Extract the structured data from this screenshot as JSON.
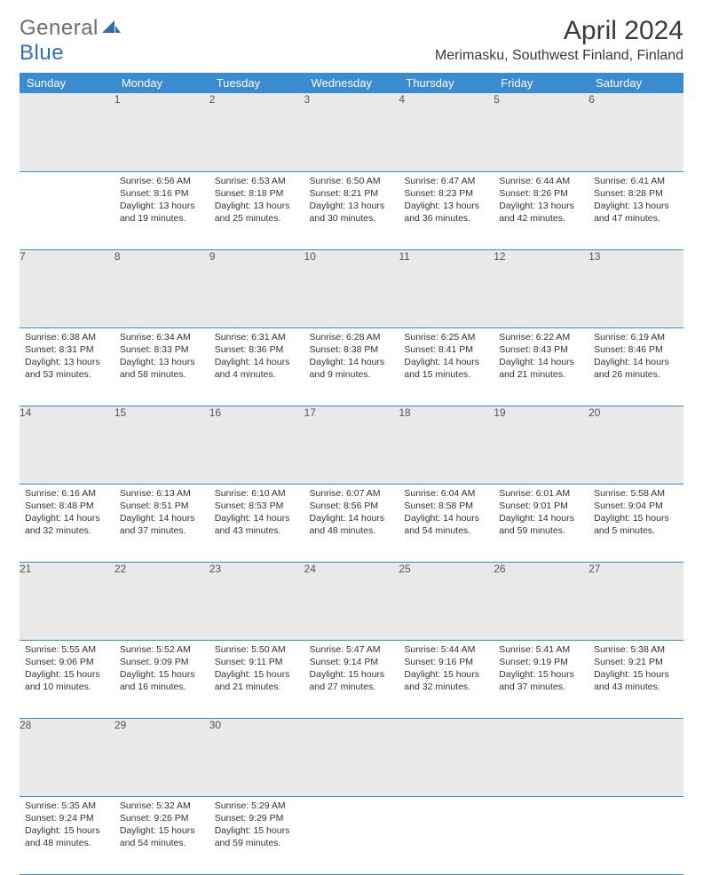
{
  "logo": {
    "text1": "General",
    "text2": "Blue"
  },
  "title": "April 2024",
  "location": "Merimasku, Southwest Finland, Finland",
  "headers": [
    "Sunday",
    "Monday",
    "Tuesday",
    "Wednesday",
    "Thursday",
    "Friday",
    "Saturday"
  ],
  "colors": {
    "header_bg": "#3a8bd0",
    "header_fg": "#ffffff",
    "daynum_bg": "#e9e9e9",
    "row_divider": "#3a8bd0",
    "logo_gray": "#6d6e71",
    "logo_blue": "#2f6fb4"
  },
  "weeks": [
    {
      "nums": [
        "",
        "1",
        "2",
        "3",
        "4",
        "5",
        "6"
      ],
      "cells": [
        null,
        {
          "sunrise": "Sunrise: 6:56 AM",
          "sunset": "Sunset: 8:16 PM",
          "day1": "Daylight: 13 hours",
          "day2": "and 19 minutes."
        },
        {
          "sunrise": "Sunrise: 6:53 AM",
          "sunset": "Sunset: 8:18 PM",
          "day1": "Daylight: 13 hours",
          "day2": "and 25 minutes."
        },
        {
          "sunrise": "Sunrise: 6:50 AM",
          "sunset": "Sunset: 8:21 PM",
          "day1": "Daylight: 13 hours",
          "day2": "and 30 minutes."
        },
        {
          "sunrise": "Sunrise: 6:47 AM",
          "sunset": "Sunset: 8:23 PM",
          "day1": "Daylight: 13 hours",
          "day2": "and 36 minutes."
        },
        {
          "sunrise": "Sunrise: 6:44 AM",
          "sunset": "Sunset: 8:26 PM",
          "day1": "Daylight: 13 hours",
          "day2": "and 42 minutes."
        },
        {
          "sunrise": "Sunrise: 6:41 AM",
          "sunset": "Sunset: 8:28 PM",
          "day1": "Daylight: 13 hours",
          "day2": "and 47 minutes."
        }
      ]
    },
    {
      "nums": [
        "7",
        "8",
        "9",
        "10",
        "11",
        "12",
        "13"
      ],
      "cells": [
        {
          "sunrise": "Sunrise: 6:38 AM",
          "sunset": "Sunset: 8:31 PM",
          "day1": "Daylight: 13 hours",
          "day2": "and 53 minutes."
        },
        {
          "sunrise": "Sunrise: 6:34 AM",
          "sunset": "Sunset: 8:33 PM",
          "day1": "Daylight: 13 hours",
          "day2": "and 58 minutes."
        },
        {
          "sunrise": "Sunrise: 6:31 AM",
          "sunset": "Sunset: 8:36 PM",
          "day1": "Daylight: 14 hours",
          "day2": "and 4 minutes."
        },
        {
          "sunrise": "Sunrise: 6:28 AM",
          "sunset": "Sunset: 8:38 PM",
          "day1": "Daylight: 14 hours",
          "day2": "and 9 minutes."
        },
        {
          "sunrise": "Sunrise: 6:25 AM",
          "sunset": "Sunset: 8:41 PM",
          "day1": "Daylight: 14 hours",
          "day2": "and 15 minutes."
        },
        {
          "sunrise": "Sunrise: 6:22 AM",
          "sunset": "Sunset: 8:43 PM",
          "day1": "Daylight: 14 hours",
          "day2": "and 21 minutes."
        },
        {
          "sunrise": "Sunrise: 6:19 AM",
          "sunset": "Sunset: 8:46 PM",
          "day1": "Daylight: 14 hours",
          "day2": "and 26 minutes."
        }
      ]
    },
    {
      "nums": [
        "14",
        "15",
        "16",
        "17",
        "18",
        "19",
        "20"
      ],
      "cells": [
        {
          "sunrise": "Sunrise: 6:16 AM",
          "sunset": "Sunset: 8:48 PM",
          "day1": "Daylight: 14 hours",
          "day2": "and 32 minutes."
        },
        {
          "sunrise": "Sunrise: 6:13 AM",
          "sunset": "Sunset: 8:51 PM",
          "day1": "Daylight: 14 hours",
          "day2": "and 37 minutes."
        },
        {
          "sunrise": "Sunrise: 6:10 AM",
          "sunset": "Sunset: 8:53 PM",
          "day1": "Daylight: 14 hours",
          "day2": "and 43 minutes."
        },
        {
          "sunrise": "Sunrise: 6:07 AM",
          "sunset": "Sunset: 8:56 PM",
          "day1": "Daylight: 14 hours",
          "day2": "and 48 minutes."
        },
        {
          "sunrise": "Sunrise: 6:04 AM",
          "sunset": "Sunset: 8:58 PM",
          "day1": "Daylight: 14 hours",
          "day2": "and 54 minutes."
        },
        {
          "sunrise": "Sunrise: 6:01 AM",
          "sunset": "Sunset: 9:01 PM",
          "day1": "Daylight: 14 hours",
          "day2": "and 59 minutes."
        },
        {
          "sunrise": "Sunrise: 5:58 AM",
          "sunset": "Sunset: 9:04 PM",
          "day1": "Daylight: 15 hours",
          "day2": "and 5 minutes."
        }
      ]
    },
    {
      "nums": [
        "21",
        "22",
        "23",
        "24",
        "25",
        "26",
        "27"
      ],
      "cells": [
        {
          "sunrise": "Sunrise: 5:55 AM",
          "sunset": "Sunset: 9:06 PM",
          "day1": "Daylight: 15 hours",
          "day2": "and 10 minutes."
        },
        {
          "sunrise": "Sunrise: 5:52 AM",
          "sunset": "Sunset: 9:09 PM",
          "day1": "Daylight: 15 hours",
          "day2": "and 16 minutes."
        },
        {
          "sunrise": "Sunrise: 5:50 AM",
          "sunset": "Sunset: 9:11 PM",
          "day1": "Daylight: 15 hours",
          "day2": "and 21 minutes."
        },
        {
          "sunrise": "Sunrise: 5:47 AM",
          "sunset": "Sunset: 9:14 PM",
          "day1": "Daylight: 15 hours",
          "day2": "and 27 minutes."
        },
        {
          "sunrise": "Sunrise: 5:44 AM",
          "sunset": "Sunset: 9:16 PM",
          "day1": "Daylight: 15 hours",
          "day2": "and 32 minutes."
        },
        {
          "sunrise": "Sunrise: 5:41 AM",
          "sunset": "Sunset: 9:19 PM",
          "day1": "Daylight: 15 hours",
          "day2": "and 37 minutes."
        },
        {
          "sunrise": "Sunrise: 5:38 AM",
          "sunset": "Sunset: 9:21 PM",
          "day1": "Daylight: 15 hours",
          "day2": "and 43 minutes."
        }
      ]
    },
    {
      "nums": [
        "28",
        "29",
        "30",
        "",
        "",
        "",
        ""
      ],
      "cells": [
        {
          "sunrise": "Sunrise: 5:35 AM",
          "sunset": "Sunset: 9:24 PM",
          "day1": "Daylight: 15 hours",
          "day2": "and 48 minutes."
        },
        {
          "sunrise": "Sunrise: 5:32 AM",
          "sunset": "Sunset: 9:26 PM",
          "day1": "Daylight: 15 hours",
          "day2": "and 54 minutes."
        },
        {
          "sunrise": "Sunrise: 5:29 AM",
          "sunset": "Sunset: 9:29 PM",
          "day1": "Daylight: 15 hours",
          "day2": "and 59 minutes."
        },
        null,
        null,
        null,
        null
      ]
    }
  ]
}
